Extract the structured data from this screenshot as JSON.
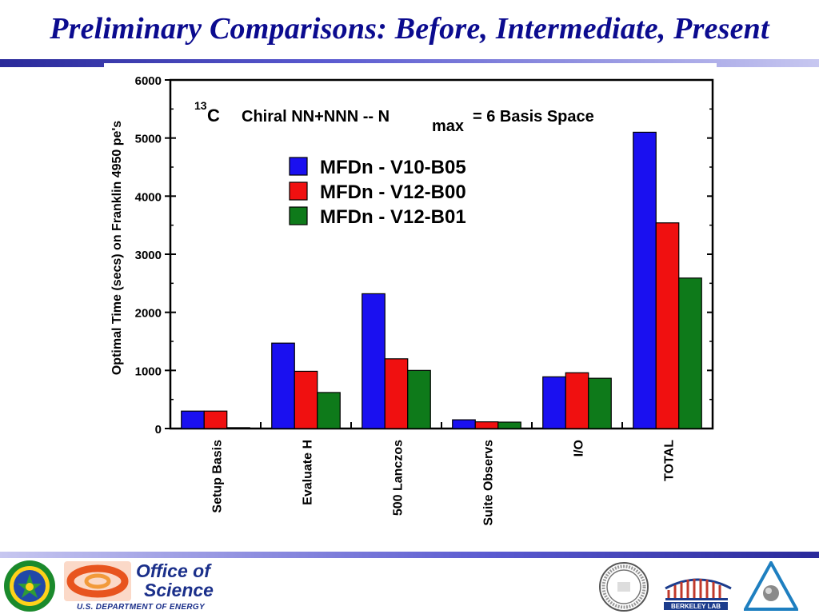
{
  "slide": {
    "title": "Preliminary Comparisons: Before, Intermediate, Present"
  },
  "chart_data": {
    "type": "bar",
    "title_parts": {
      "isotope_mass": "13",
      "element": "C",
      "text": "Chiral NN+NNN -- N",
      "subscript": "max",
      "tail": "= 6 Basis Space"
    },
    "ylabel": "Optimal Time (secs) on Franklin 4950 pe's",
    "xlabel": "",
    "ylim": [
      0,
      6000
    ],
    "yticks": [
      0,
      1000,
      2000,
      3000,
      4000,
      5000,
      6000
    ],
    "categories": [
      "Setup Basis",
      "Evaluate H",
      "500 Lanczos",
      "Suite Observs",
      "I/O",
      "TOTAL"
    ],
    "series": [
      {
        "name": "MFDn - V10-B05",
        "color": "#1a10f0",
        "values": [
          300,
          1470,
          2320,
          150,
          890,
          5100
        ]
      },
      {
        "name": "MFDn - V12-B00",
        "color": "#f01010",
        "values": [
          300,
          985,
          1200,
          115,
          960,
          3540
        ]
      },
      {
        "name": "MFDn - V12-B01",
        "color": "#0e7a1a",
        "values": [
          15,
          620,
          1000,
          110,
          865,
          2590
        ]
      }
    ],
    "legend_position": "top-left"
  },
  "footer": {
    "office_line1": "Office of",
    "office_line2": "Science",
    "department": "U.S. DEPARTMENT OF ENERGY",
    "lab_logo_text": "BERKELEY LAB"
  }
}
